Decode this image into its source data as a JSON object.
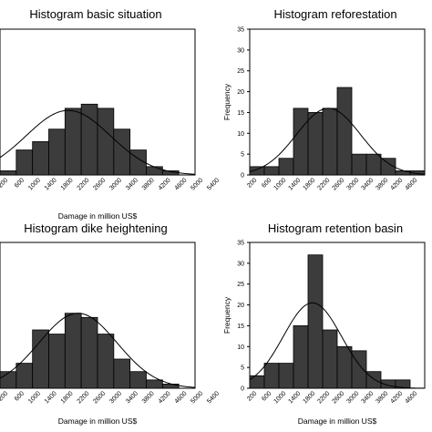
{
  "chart_data": [
    {
      "type": "bar",
      "title": "Histogram basic situation",
      "xlabel": "Damage in million US$",
      "ylabel": "",
      "ylim": [
        0,
        35
      ],
      "yticks": [],
      "xtick_labels": [
        "200",
        "600",
        "1000",
        "1400",
        "1800",
        "2200",
        "2600",
        "3000",
        "3400",
        "3800",
        "4200",
        "4600",
        "5000",
        "5400"
      ],
      "values": [
        1,
        6,
        8,
        11,
        16,
        17,
        16,
        11,
        6,
        2,
        1,
        0
      ],
      "fit_curve": {
        "type": "normal",
        "peak": 15.5,
        "mean_bin": 4.2,
        "sd_bins": 2.6
      }
    },
    {
      "type": "bar",
      "title": "Histogram reforestation",
      "xlabel": "",
      "ylabel": "Frequency",
      "ylim": [
        0,
        35
      ],
      "yticks": [
        "0",
        "5",
        "10",
        "15",
        "20",
        "25",
        "30",
        "35"
      ],
      "xtick_labels": [
        "200",
        "600",
        "1000",
        "1400",
        "1800",
        "2200",
        "2600",
        "3000",
        "3400",
        "3800",
        "4200",
        "4600"
      ],
      "values": [
        2,
        2,
        4,
        16,
        15,
        16,
        21,
        5,
        5,
        4,
        1,
        1
      ],
      "fit_curve": {
        "type": "normal",
        "peak": 16,
        "mean_bin": 5.4,
        "sd_bins": 2.2
      }
    },
    {
      "type": "bar",
      "title": "Histogram dike heightening",
      "xlabel": "Damage in million US$",
      "ylabel": "",
      "ylim": [
        0,
        35
      ],
      "yticks": [],
      "xtick_labels": [
        "200",
        "600",
        "1000",
        "1400",
        "1800",
        "2200",
        "2600",
        "3000",
        "3400",
        "3800",
        "4200",
        "4600",
        "5000",
        "5400"
      ],
      "values": [
        4,
        6,
        14,
        13,
        18,
        17,
        13,
        7,
        4,
        2,
        1,
        0
      ],
      "fit_curve": {
        "type": "normal",
        "peak": 18,
        "mean_bin": 4.8,
        "sd_bins": 2.4
      }
    },
    {
      "type": "bar",
      "title": "Histogram retention basin",
      "xlabel": "Damage in million US$",
      "ylabel": "Frequency",
      "ylim": [
        0,
        35
      ],
      "yticks": [
        "0",
        "5",
        "10",
        "15",
        "20",
        "25",
        "30",
        "35"
      ],
      "xtick_labels": [
        "200",
        "600",
        "1000",
        "1400",
        "1800",
        "2200",
        "2600",
        "3000",
        "3400",
        "3800",
        "4200",
        "4600"
      ],
      "values": [
        3,
        6,
        6,
        15,
        32,
        14,
        10,
        9,
        4,
        2,
        2,
        0
      ],
      "fit_curve": {
        "type": "normal",
        "peak": 20.5,
        "mean_bin": 4.3,
        "sd_bins": 2.0
      }
    }
  ]
}
